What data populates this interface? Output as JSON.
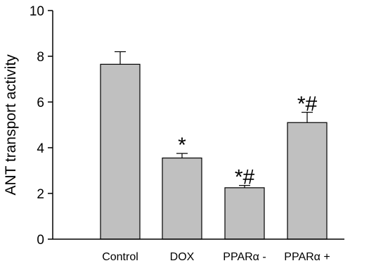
{
  "chart_data": {
    "type": "bar",
    "categories": [
      "Control",
      "DOX",
      "PPARα -",
      "PPARα +"
    ],
    "values": [
      7.65,
      3.55,
      2.25,
      5.1
    ],
    "errors": [
      0.55,
      0.2,
      0.1,
      0.45
    ],
    "annotations": [
      "",
      "*",
      "*#",
      "*#"
    ],
    "ylabel": "ANT transport activity",
    "xlabel": "",
    "ylim": [
      0,
      10
    ],
    "yticks": [
      0,
      2,
      4,
      6,
      8,
      10
    ],
    "yticklabels": [
      "0",
      "2",
      "4",
      "6",
      "8",
      "10"
    ],
    "bar_color": "#c0c0c0",
    "grid": false
  }
}
